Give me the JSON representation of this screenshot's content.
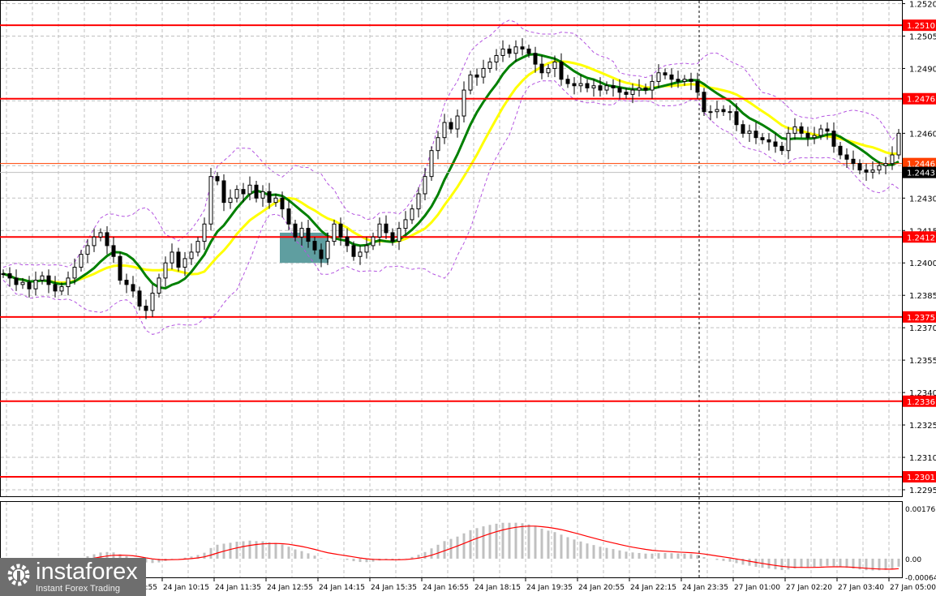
{
  "chart_data": {
    "type": "candlestick",
    "bar_interval_minutes": 10,
    "closes": [
      1.2395,
      1.2393,
      1.239,
      1.2391,
      1.2388,
      1.2392,
      1.2394,
      1.239,
      1.2387,
      1.2389,
      1.2393,
      1.2398,
      1.2404,
      1.2408,
      1.2412,
      1.2414,
      1.2408,
      1.2403,
      1.2392,
      1.239,
      1.2387,
      1.238,
      1.2378,
      1.2386,
      1.2393,
      1.24,
      1.2405,
      1.2398,
      1.2402,
      1.2405,
      1.241,
      1.2418,
      1.244,
      1.2438,
      1.2428,
      1.243,
      1.2434,
      1.2432,
      1.2436,
      1.243,
      1.2433,
      1.2428,
      1.243,
      1.2425,
      1.2418,
      1.2412,
      1.2416,
      1.241,
      1.2406,
      1.2402,
      1.241,
      1.2418,
      1.2412,
      1.2408,
      1.2403,
      1.2405,
      1.2408,
      1.2412,
      1.2418,
      1.2414,
      1.241,
      1.2416,
      1.242,
      1.2425,
      1.2432,
      1.244,
      1.2452,
      1.2458,
      1.2465,
      1.2462,
      1.2468,
      1.248,
      1.2487,
      1.2486,
      1.249,
      1.2493,
      1.2496,
      1.2499,
      1.2497,
      1.25,
      1.2499,
      1.2497,
      1.2492,
      1.2488,
      1.249,
      1.2493,
      1.2485,
      1.2483,
      1.2482,
      1.2483,
      1.2481,
      1.2482,
      1.248,
      1.2482,
      1.2481,
      1.2479,
      1.2478,
      1.248,
      1.2481,
      1.248,
      1.2484,
      1.2488,
      1.2487,
      1.2485,
      1.2484,
      1.2485,
      1.2484,
      1.2479,
      1.247,
      1.247,
      1.2471,
      1.247,
      1.247,
      1.2464,
      1.246,
      1.2461,
      1.2458,
      1.2457,
      1.2456,
      1.2454,
      1.2452,
      1.246,
      1.2463,
      1.246,
      1.2458,
      1.2459,
      1.2462,
      1.2461,
      1.2454,
      1.245,
      1.2448,
      1.2446,
      1.2443,
      1.2442,
      1.2443,
      1.2445,
      1.2446,
      1.245,
      1.246
    ],
    "ylim": [
      1.2295,
      1.252
    ],
    "y_tick_labels": [
      "1.2520",
      "1.2505",
      "1.2490",
      "1.2460",
      "1.2430",
      "1.2415",
      "1.2400",
      "1.2385",
      "1.2370",
      "1.2355",
      "1.2340",
      "1.2325",
      "1.2310",
      "1.2295"
    ],
    "levels": [
      {
        "label": "1.2510",
        "value": 1.251
      },
      {
        "label": "1.2476",
        "value": 1.2476
      },
      {
        "label": "1.2412",
        "value": 1.2412
      },
      {
        "label": "1.2375",
        "value": 1.2375
      },
      {
        "label": "1.2336",
        "value": 1.2336
      },
      {
        "label": "1.2301",
        "value": 1.2301
      }
    ],
    "ask": {
      "label": "1.2446",
      "value": 1.2446
    },
    "bid": {
      "label": "1.2443",
      "value": 1.2443
    },
    "highlight_zone": {
      "from_price": 1.24,
      "to_price": 1.2414,
      "from_time": "24 Jan 12:55",
      "to_time": "24 Jan 14:15"
    },
    "session_separator": "24 Jan 23:35",
    "x_tick_labels": [
      "24 Jan 08:55",
      "24 Jan 10:15",
      "24 Jan 11:35",
      "24 Jan 12:55",
      "24 Jan 14:15",
      "24 Jan 15:35",
      "24 Jan 16:55",
      "24 Jan 18:15",
      "24 Jan 19:35",
      "24 Jan 20:55",
      "24 Jan 22:15",
      "24 Jan 23:35",
      "27 Jan 01:00",
      "27 Jan 02:20",
      "27 Jan 03:40",
      "27 Jan 05:00"
    ],
    "indicator": {
      "type": "histogram+signal",
      "y_tick_labels": [
        "0.00176",
        "0.00",
        "-0.00064"
      ],
      "ylim": [
        -0.00064,
        0.00176
      ]
    },
    "grid": true,
    "colors": {
      "level": "#ff0000",
      "fast_ma": "#008000",
      "slow_ma": "#ffff00",
      "bands": "#b455e0",
      "zone": "#5f9ea0",
      "histogram": "#c0c0c0",
      "signal": "#ff0000",
      "ask_tag": "#ff4000",
      "bid_tag": "#000000"
    }
  },
  "logo": {
    "brand": "instaforex",
    "tagline": "Instant Forex Trading"
  }
}
